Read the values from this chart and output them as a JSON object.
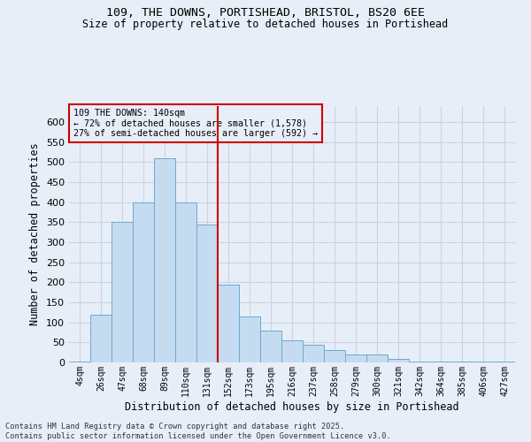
{
  "title_line1": "109, THE DOWNS, PORTISHEAD, BRISTOL, BS20 6EE",
  "title_line2": "Size of property relative to detached houses in Portishead",
  "xlabel": "Distribution of detached houses by size in Portishead",
  "ylabel": "Number of detached properties",
  "annotation_title": "109 THE DOWNS: 140sqm",
  "annotation_line2": "← 72% of detached houses are smaller (1,578)",
  "annotation_line3": "27% of semi-detached houses are larger (592) →",
  "footer_line1": "Contains HM Land Registry data © Crown copyright and database right 2025.",
  "footer_line2": "Contains public sector information licensed under the Open Government Licence v3.0.",
  "categories": [
    "4sqm",
    "26sqm",
    "47sqm",
    "68sqm",
    "89sqm",
    "110sqm",
    "131sqm",
    "152sqm",
    "173sqm",
    "195sqm",
    "216sqm",
    "237sqm",
    "258sqm",
    "279sqm",
    "300sqm",
    "321sqm",
    "342sqm",
    "364sqm",
    "385sqm",
    "406sqm",
    "427sqm"
  ],
  "values": [
    3,
    120,
    350,
    400,
    510,
    400,
    345,
    195,
    115,
    80,
    55,
    45,
    32,
    20,
    20,
    8,
    3,
    3,
    3,
    3,
    3
  ],
  "bar_color": "#c5dcf0",
  "bar_edge_color": "#6aaad4",
  "vline_pos": 6.5,
  "vline_color": "#cc0000",
  "annotation_box_color": "#cc0000",
  "grid_color": "#c8d4e4",
  "bg_color": "#e8eef8",
  "ylim": [
    0,
    640
  ],
  "yticks": [
    0,
    50,
    100,
    150,
    200,
    250,
    300,
    350,
    400,
    450,
    500,
    550,
    600
  ]
}
